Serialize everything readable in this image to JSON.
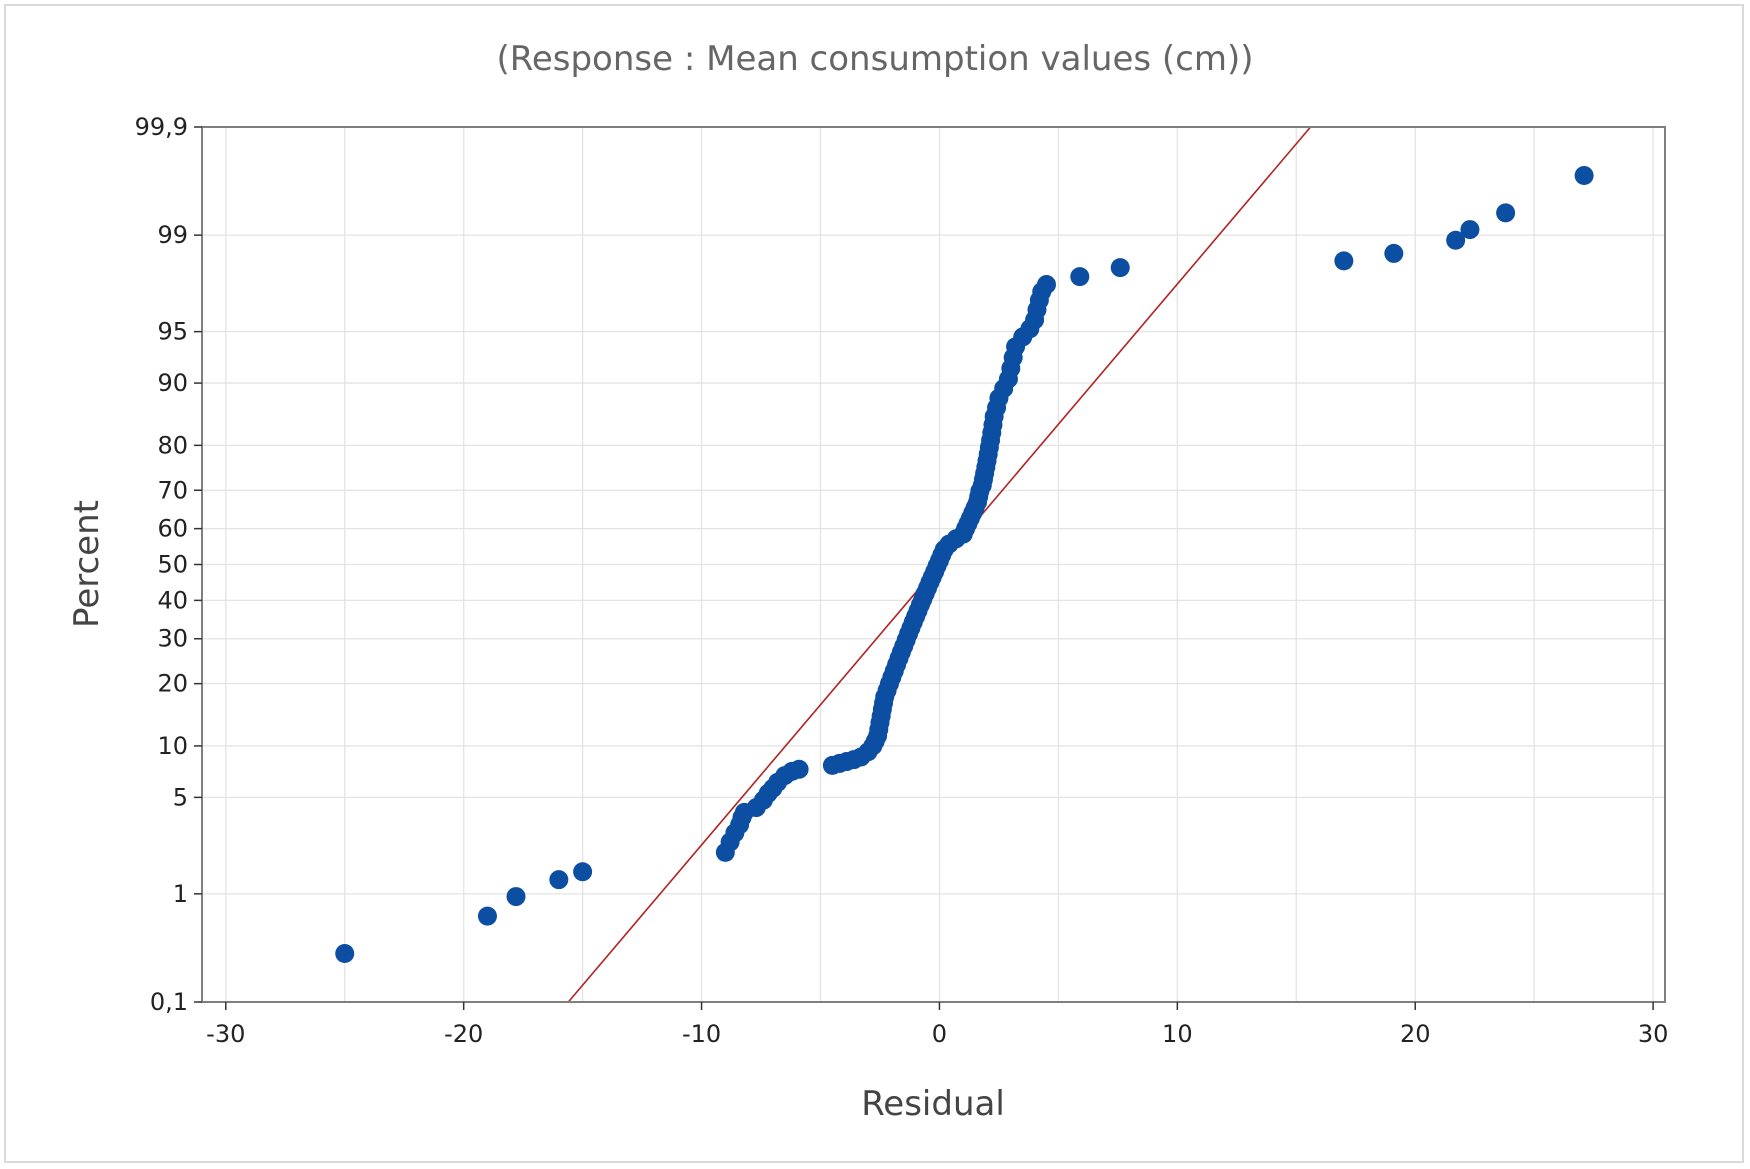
{
  "chart_data": {
    "type": "scatter",
    "title": "(Response : Mean consumption values (cm))",
    "xlabel": "Residual",
    "ylabel": "Percent",
    "xlim": [
      -31,
      30.5
    ],
    "ylim_percent": [
      0.1,
      99.9
    ],
    "y_scale": "normal-probability",
    "grid": true,
    "x_ticks": [
      -30,
      -20,
      -10,
      0,
      10,
      20,
      30
    ],
    "y_ticks": [
      0.1,
      1,
      5,
      10,
      20,
      30,
      40,
      50,
      60,
      70,
      80,
      90,
      95,
      99,
      99.9
    ],
    "y_tick_labels": [
      "0,1",
      "1",
      "5",
      "10",
      "20",
      "30",
      "40",
      "50",
      "60",
      "70",
      "80",
      "90",
      "95",
      "99",
      "99,9"
    ],
    "fit_line": {
      "color": "#b22222",
      "points": [
        [
          -15.6,
          0.1
        ],
        [
          15.6,
          99.9
        ]
      ]
    },
    "colors": {
      "points": "#0b4ea2",
      "fit_line": "#b22222",
      "grid": "#e3e3e3",
      "frame": "#7f7f7f"
    },
    "points": [
      [
        -25.0,
        0.3
      ],
      [
        -19.0,
        0.65
      ],
      [
        -17.8,
        0.95
      ],
      [
        -16.0,
        1.3
      ],
      [
        -15.0,
        1.5
      ],
      [
        -9.0,
        2.1
      ],
      [
        -8.8,
        2.5
      ],
      [
        -8.6,
        2.9
      ],
      [
        -8.4,
        3.3
      ],
      [
        -8.3,
        3.7
      ],
      [
        -8.2,
        4.0
      ],
      [
        -7.7,
        4.3
      ],
      [
        -7.4,
        4.8
      ],
      [
        -7.2,
        5.3
      ],
      [
        -7.0,
        5.7
      ],
      [
        -6.8,
        6.2
      ],
      [
        -6.5,
        6.8
      ],
      [
        -6.2,
        7.2
      ],
      [
        -5.9,
        7.4
      ],
      [
        -4.5,
        7.8
      ],
      [
        -4.2,
        8.0
      ],
      [
        -3.9,
        8.2
      ],
      [
        -3.6,
        8.4
      ],
      [
        -3.3,
        8.7
      ],
      [
        -3.0,
        9.3
      ],
      [
        -2.8,
        10.0
      ],
      [
        -2.7,
        10.6
      ],
      [
        -2.6,
        11.3
      ],
      [
        -2.55,
        12.2
      ],
      [
        -2.5,
        13.2
      ],
      [
        -2.45,
        14.2
      ],
      [
        -2.4,
        15.3
      ],
      [
        -2.35,
        16.4
      ],
      [
        -2.3,
        17.5
      ],
      [
        -2.2,
        18.7
      ],
      [
        -2.1,
        20.0
      ],
      [
        -2.0,
        21.3
      ],
      [
        -1.9,
        22.6
      ],
      [
        -1.8,
        24.0
      ],
      [
        -1.7,
        25.4
      ],
      [
        -1.6,
        26.8
      ],
      [
        -1.5,
        28.2
      ],
      [
        -1.4,
        29.7
      ],
      [
        -1.3,
        31.2
      ],
      [
        -1.2,
        32.7
      ],
      [
        -1.1,
        34.2
      ],
      [
        -1.0,
        35.7
      ],
      [
        -0.9,
        37.2
      ],
      [
        -0.8,
        38.8
      ],
      [
        -0.7,
        40.3
      ],
      [
        -0.6,
        41.9
      ],
      [
        -0.5,
        43.4
      ],
      [
        -0.4,
        45.0
      ],
      [
        -0.3,
        46.5
      ],
      [
        -0.2,
        48.0
      ],
      [
        -0.1,
        49.6
      ],
      [
        0.0,
        51.1
      ],
      [
        0.1,
        52.7
      ],
      [
        0.2,
        54.2
      ],
      [
        0.4,
        55.7
      ],
      [
        0.7,
        57.2
      ],
      [
        1.0,
        58.5
      ],
      [
        1.1,
        60.0
      ],
      [
        1.2,
        61.4
      ],
      [
        1.3,
        62.8
      ],
      [
        1.4,
        64.2
      ],
      [
        1.5,
        65.6
      ],
      [
        1.6,
        67.0
      ],
      [
        1.65,
        68.4
      ],
      [
        1.7,
        69.8
      ],
      [
        1.8,
        71.2
      ],
      [
        1.85,
        72.6
      ],
      [
        1.9,
        74.0
      ],
      [
        1.95,
        75.4
      ],
      [
        2.0,
        76.8
      ],
      [
        2.05,
        78.2
      ],
      [
        2.1,
        79.6
      ],
      [
        2.15,
        81.0
      ],
      [
        2.2,
        82.4
      ],
      [
        2.25,
        83.8
      ],
      [
        2.3,
        85.2
      ],
      [
        2.4,
        86.6
      ],
      [
        2.5,
        88.0
      ],
      [
        2.7,
        89.3
      ],
      [
        2.9,
        90.5
      ],
      [
        3.0,
        91.7
      ],
      [
        3.1,
        92.8
      ],
      [
        3.2,
        93.8
      ],
      [
        3.5,
        94.6
      ],
      [
        3.8,
        95.2
      ],
      [
        4.0,
        95.8
      ],
      [
        4.1,
        96.4
      ],
      [
        4.2,
        96.9
      ],
      [
        4.3,
        97.3
      ],
      [
        4.5,
        97.6
      ],
      [
        5.9,
        97.9
      ],
      [
        7.6,
        98.2
      ],
      [
        17.0,
        98.4
      ],
      [
        19.1,
        98.6
      ],
      [
        21.7,
        98.9
      ],
      [
        22.3,
        99.1
      ],
      [
        23.8,
        99.35
      ],
      [
        27.1,
        99.7
      ]
    ]
  }
}
